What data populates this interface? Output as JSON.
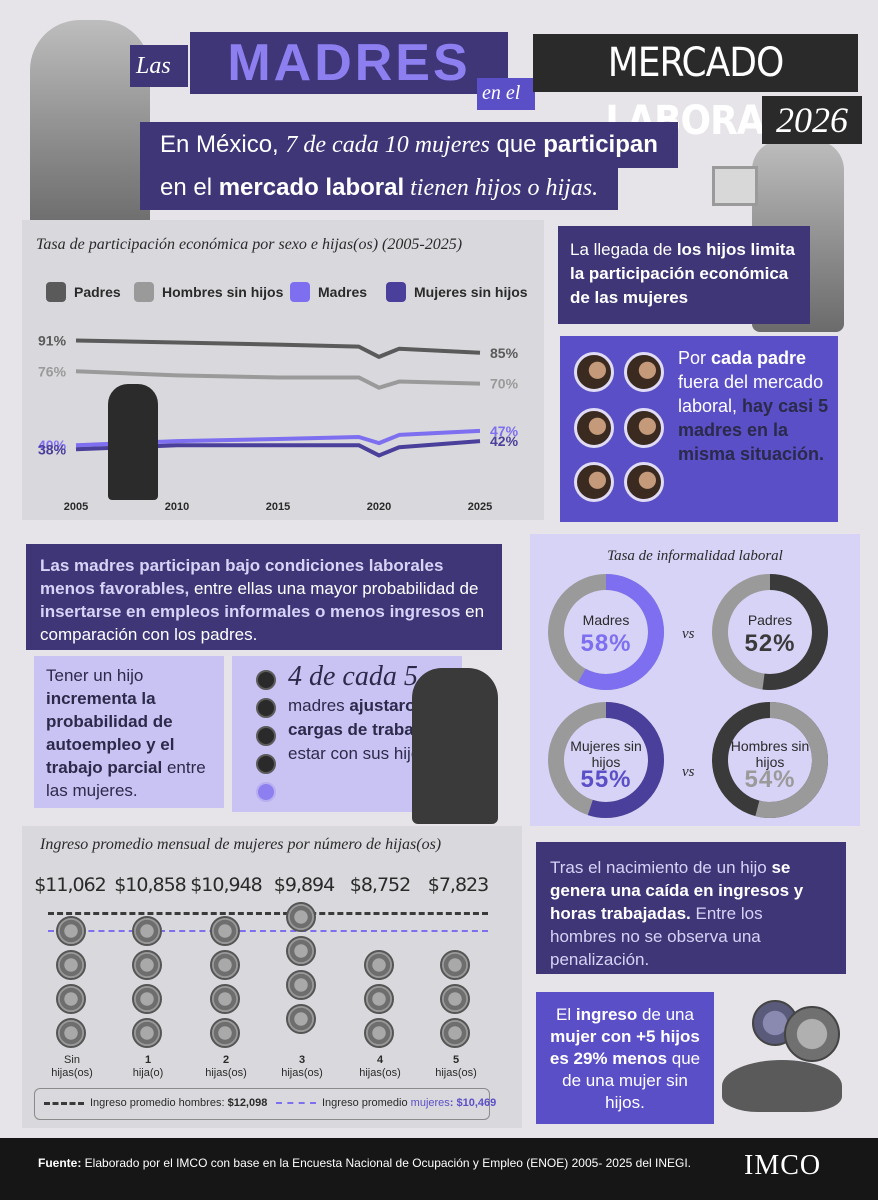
{
  "title": {
    "las": "Las",
    "madres": "MADRES",
    "en_el": "en el",
    "mercado": "MERCADO",
    "laboral": "LABORAL",
    "year": "2026"
  },
  "subtitle": {
    "line1_a": "En México, ",
    "line1_b": "7 de cada 10 mujeres",
    "line1_c": " que ",
    "line1_d": "participan",
    "line2_a": "en el ",
    "line2_b": "mercado laboral",
    "line2_c": " tienen hijos o hijas."
  },
  "participation_chart": {
    "title": "Tasa de participación económica por sexo e hijas(os) (2005-2025)",
    "legend": [
      "Padres",
      "Hombres sin hijos",
      "Madres",
      "Mujeres sin hijos"
    ],
    "start_labels": [
      "91%",
      "76%",
      "40%",
      "38%"
    ],
    "end_labels": [
      "85%",
      "70%",
      "47%",
      "42%"
    ],
    "x_ticks": [
      "2005",
      "2010",
      "2015",
      "2020",
      "2025"
    ]
  },
  "chart_data": {
    "type": "line",
    "title": "Tasa de participación económica por sexo e hijas(os) (2005-2025)",
    "x": [
      2005,
      2010,
      2015,
      2019,
      2020,
      2021,
      2025
    ],
    "series": [
      {
        "name": "Padres",
        "color": "#5a5a5a",
        "values": [
          91,
          90,
          89,
          88,
          83,
          87,
          85
        ]
      },
      {
        "name": "Hombres sin hijos",
        "color": "#9a9a9a",
        "values": [
          76,
          74,
          73,
          73,
          68,
          71,
          70
        ]
      },
      {
        "name": "Madres",
        "color": "#7d6ff0",
        "values": [
          40,
          42,
          43,
          44,
          41,
          45,
          47
        ]
      },
      {
        "name": "Mujeres sin hijos",
        "color": "#4a3f9a",
        "values": [
          38,
          40,
          40,
          40,
          35,
          39,
          42
        ]
      }
    ],
    "ylim": [
      25,
      100
    ]
  },
  "info_box_1": {
    "a": "La llegada de ",
    "b": "los hijos limita la participación económica de las mujeres"
  },
  "info_box_2": {
    "a": "Por ",
    "b": "cada padre",
    "c": " fuera del mercado laboral, ",
    "d": "hay casi 5 madres en la misma situación."
  },
  "mid_block": {
    "a": "Las madres participan bajo condiciones laborales menos favorables,",
    "b": " entre ellas una mayor probabilidad de ",
    "c": "insertarse en empleos informales o menos ingresos",
    "d": " en comparación con los padres."
  },
  "self_employment": {
    "a": "Tener un hijo ",
    "b": "incrementa la probabilidad de autoempleo y el trabajo parcial",
    "c": " entre las mujeres."
  },
  "workload": {
    "big": "4 de cada 5",
    "a": "madres ",
    "b": "ajustaron sus cargas de trabajo",
    "c": " para estar con sus hijos."
  },
  "informality": {
    "title": "Tasa de informalidad laboral",
    "vs": "vs",
    "items": [
      {
        "label": "Madres",
        "pct": "58%",
        "value": 58
      },
      {
        "label": "Padres",
        "pct": "52%",
        "value": 52
      },
      {
        "label": "Mujeres sin hijos",
        "pct": "55%",
        "value": 55
      },
      {
        "label": "Hombres sin hijos",
        "pct": "54%",
        "value": 54
      }
    ]
  },
  "income": {
    "title": "Ingreso promedio mensual de mujeres por número de hijas(os)",
    "amounts": [
      "$11,062",
      "$10,858",
      "$10,948",
      "$9,894",
      "$8,752",
      "$7,823"
    ],
    "groups": [
      {
        "num": "Sin",
        "unit": "hijas(os)",
        "coins": 4
      },
      {
        "num": "1",
        "unit": "hija(o)",
        "coins": 4
      },
      {
        "num": "2",
        "unit": "hijas(os)",
        "coins": 4
      },
      {
        "num": "3",
        "unit": "hijas(os)",
        "coins": 4
      },
      {
        "num": "4",
        "unit": "hijas(os)",
        "coins": 3
      },
      {
        "num": "5",
        "unit": "hijas(os)",
        "coins": 3
      }
    ],
    "legend_men_label": "Ingreso promedio hombres: ",
    "legend_men_value": "$12,098",
    "legend_women_label": "Ingreso promedio ",
    "legend_women_word": "mujeres",
    "legend_women_value": ": $10,469"
  },
  "drop_box": {
    "a": "Tras el nacimiento de un hijo ",
    "b": "se genera una caída en ingresos y horas trabajadas.",
    "c": " Entre los hombres no se observa una penalización."
  },
  "income_box": {
    "a": "El ",
    "b": "ingreso",
    "c": " de una ",
    "d": "mujer con +5 hijos es 29% menos",
    "e": " que de una mujer sin hijos."
  },
  "footer": {
    "label": "Fuente:",
    "text": " Elaborado por el IMCO con base en la Encuesta Nacional de Ocupación y Empleo (ENOE) 2005- 2025 del INEGI.",
    "logo": "IMCO"
  },
  "colors": {
    "dark_purple": "#3f3678",
    "mid_purple": "#5b4fc7",
    "light_purple": "#c9c3f4",
    "gray_donut": "#9a9a9a",
    "dark_donut": "#3a3a3a"
  }
}
